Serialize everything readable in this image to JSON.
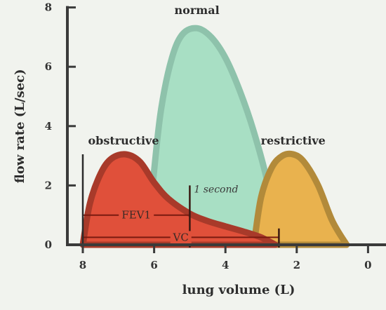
{
  "chart_data": {
    "type": "area",
    "title": "",
    "xlabel": "lung volume (L)",
    "ylabel": "flow rate (L/sec)",
    "xlim": [
      8.3,
      -0.5
    ],
    "ylim": [
      0,
      8
    ],
    "x_ticks": [
      "8",
      "6",
      "4",
      "2",
      "0"
    ],
    "y_ticks": [
      "0",
      "2",
      "4",
      "6",
      "8"
    ],
    "grid": false,
    "legend": "none",
    "series": [
      {
        "name": "normal",
        "color_fill": "#a8dfc4",
        "color_edge": "#8ec2ab",
        "points": [
          [
            6.2,
            0
          ],
          [
            6.0,
            2.5
          ],
          [
            5.8,
            4.6
          ],
          [
            5.5,
            6.3
          ],
          [
            5.2,
            7.1
          ],
          [
            4.8,
            7.3
          ],
          [
            4.4,
            7.0
          ],
          [
            4.0,
            6.3
          ],
          [
            3.6,
            5.2
          ],
          [
            3.2,
            3.8
          ],
          [
            2.8,
            2.0
          ],
          [
            2.5,
            0
          ]
        ]
      },
      {
        "name": "restrictive",
        "color_fill": "#e9b24e",
        "color_edge": "#b28a3a",
        "points": [
          [
            3.2,
            0
          ],
          [
            3.0,
            1.6
          ],
          [
            2.7,
            2.6
          ],
          [
            2.4,
            3.0
          ],
          [
            2.1,
            3.05
          ],
          [
            1.8,
            2.8
          ],
          [
            1.4,
            2.0
          ],
          [
            1.0,
            0.8
          ],
          [
            0.6,
            0
          ]
        ]
      },
      {
        "name": "obstructive",
        "color_fill": "#e0503a",
        "color_edge": "#a83a2a",
        "points": [
          [
            8.0,
            0
          ],
          [
            7.8,
            1.4
          ],
          [
            7.5,
            2.4
          ],
          [
            7.2,
            2.9
          ],
          [
            6.8,
            3.05
          ],
          [
            6.4,
            2.8
          ],
          [
            6.0,
            2.1
          ],
          [
            5.6,
            1.55
          ],
          [
            5.0,
            1.05
          ],
          [
            4.5,
            0.8
          ],
          [
            4.0,
            0.62
          ],
          [
            3.5,
            0.45
          ],
          [
            3.0,
            0.25
          ],
          [
            2.6,
            0
          ]
        ]
      }
    ],
    "annotations": {
      "fev1": {
        "label": "FEV1",
        "from_x": 8,
        "to_x": 5,
        "y": 1.0
      },
      "vc": {
        "label": "VC",
        "from_x": 8,
        "to_x": 2.5,
        "y": 0.25
      },
      "one_second": {
        "label": "1 second",
        "x": 5,
        "y_top": 2.0
      }
    }
  }
}
